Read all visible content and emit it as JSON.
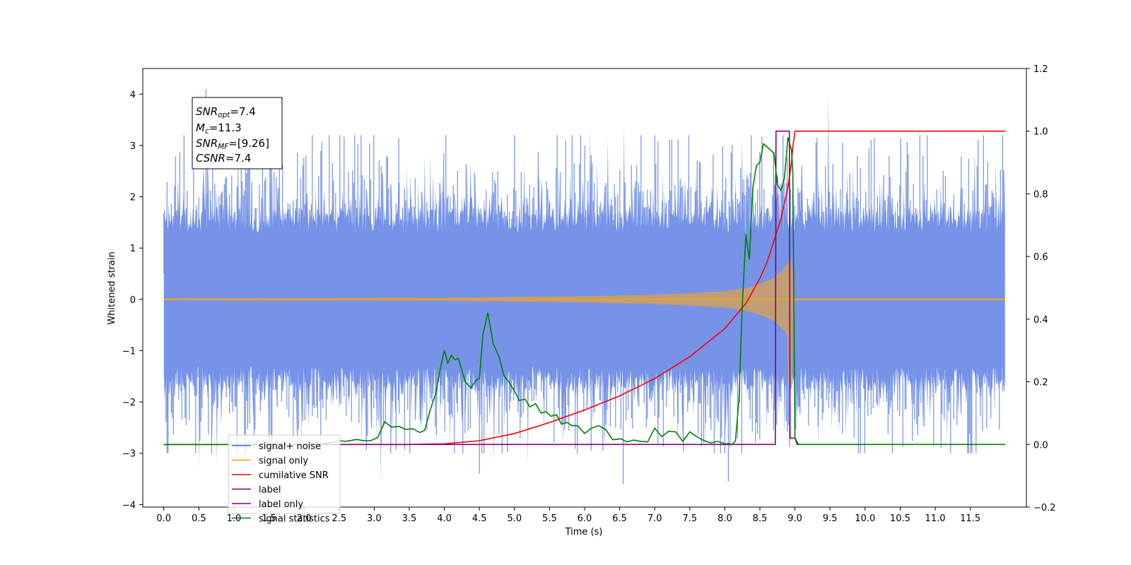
{
  "chart_data": {
    "type": "line",
    "xlabel": "Time (s)",
    "ylabel": "Whitened strain",
    "xlim": [
      -0.3,
      12.3
    ],
    "ylim": [
      -4.05,
      4.5
    ],
    "y2lim": [
      -0.2,
      1.2
    ],
    "xticks": [
      "0.0",
      "0.5",
      "1.0",
      "1.5",
      "2.0",
      "2.5",
      "3.0",
      "3.5",
      "4.0",
      "4.5",
      "5.0",
      "5.5",
      "6.0",
      "6.5",
      "7.0",
      "7.5",
      "8.0",
      "8.5",
      "9.0",
      "9.5",
      "10.0",
      "10.5",
      "11.0",
      "11.5"
    ],
    "yticks": [
      "4",
      "3",
      "2",
      "1",
      "0",
      "−1",
      "−2",
      "−3",
      "−4"
    ],
    "y2ticks": [
      "1.2",
      "1.0",
      "0.8",
      "0.6",
      "0.4",
      "0.2",
      "0.0",
      "−0.2"
    ],
    "annotation": {
      "snr_opt_base": "SNR",
      "snr_opt_sub": "opt",
      "snr_opt_value": "=7.4",
      "mc_base": "M",
      "mc_sub": "c",
      "mc_value": "=11.3",
      "snr_mf_base": "SNR",
      "snr_mf_sub": "MF",
      "snr_mf_value": "=[9.26]",
      "csnr_base": "CSNR",
      "csnr_value": "=7.4"
    },
    "legend": [
      {
        "label": "signal+ noise",
        "color": "#4169e1"
      },
      {
        "label": "signal only",
        "color": "#ffa500"
      },
      {
        "label": "cumilative SNR",
        "color": "#ff0000"
      },
      {
        "label": "label",
        "color": "#800080"
      },
      {
        "label": "label only",
        "color": "#800080"
      },
      {
        "label": "signal statistics",
        "color": "#008000"
      }
    ],
    "legend_position": "lower-left",
    "series": [
      {
        "name": "signal+ noise",
        "axis": "left",
        "color": "#4169e1",
        "x_range": [
          0.0,
          12.0
        ],
        "amplitude_sigma": 1.0,
        "peak_max": 4.1,
        "peak_min": -3.6
      },
      {
        "name": "signal only",
        "axis": "left",
        "color": "#ffa500",
        "chirp_start": 0.0,
        "merger_time": 8.97,
        "envelope_x": [
          0.0,
          4.0,
          6.0,
          7.0,
          7.5,
          8.0,
          8.3,
          8.5,
          8.7,
          8.85,
          8.95,
          9.0,
          12.0
        ],
        "envelope_y": [
          0.02,
          0.03,
          0.06,
          0.09,
          0.12,
          0.16,
          0.22,
          0.3,
          0.42,
          0.62,
          0.8,
          0.02,
          0.02
        ]
      },
      {
        "name": "cumilative SNR",
        "axis": "right",
        "color": "#ff0000",
        "x": [
          0.0,
          3.5,
          4.0,
          4.5,
          5.0,
          5.5,
          6.0,
          6.5,
          7.0,
          7.5,
          8.0,
          8.3,
          8.5,
          8.6,
          8.7,
          8.8,
          8.9,
          8.95,
          8.97,
          9.0,
          12.0
        ],
        "y": [
          0.0,
          0.0,
          0.002,
          0.012,
          0.035,
          0.07,
          0.11,
          0.155,
          0.21,
          0.28,
          0.37,
          0.45,
          0.53,
          0.58,
          0.65,
          0.72,
          0.82,
          0.9,
          0.95,
          1.0,
          1.0
        ]
      },
      {
        "name": "label",
        "axis": "right",
        "color": "#800080",
        "x": [
          0.0,
          8.72,
          8.73,
          8.92,
          8.93,
          9.0,
          9.05
        ],
        "y": [
          0.0,
          0.0,
          1.0,
          1.0,
          0.02,
          0.02,
          0.0
        ]
      },
      {
        "name": "signal statistics",
        "axis": "right",
        "color": "#008000",
        "x": [
          0.0,
          2.2,
          2.35,
          2.5,
          2.6,
          2.75,
          2.85,
          2.95,
          3.05,
          3.15,
          3.25,
          3.35,
          3.45,
          3.55,
          3.65,
          3.72,
          3.8,
          3.88,
          3.95,
          4.0,
          4.05,
          4.1,
          4.15,
          4.2,
          4.3,
          4.38,
          4.45,
          4.5,
          4.55,
          4.62,
          4.7,
          4.78,
          4.85,
          4.92,
          5.0,
          5.07,
          5.15,
          5.22,
          5.3,
          5.38,
          5.45,
          5.52,
          5.6,
          5.67,
          5.75,
          5.82,
          5.9,
          6.0,
          6.1,
          6.2,
          6.3,
          6.4,
          6.52,
          6.6,
          6.7,
          6.8,
          6.9,
          7.0,
          7.1,
          7.2,
          7.3,
          7.4,
          7.5,
          7.58,
          7.65,
          7.73,
          7.8,
          7.9,
          8.0,
          8.05,
          8.1,
          8.15,
          8.2,
          8.25,
          8.3,
          8.35,
          8.4,
          8.45,
          8.5,
          8.55,
          8.6,
          8.65,
          8.7,
          8.75,
          8.8,
          8.85,
          8.9,
          8.95,
          8.97,
          9.0,
          9.03,
          12.0
        ],
        "y": [
          0.0,
          0.0,
          0.005,
          0.012,
          0.01,
          0.016,
          0.012,
          0.012,
          0.022,
          0.072,
          0.055,
          0.058,
          0.048,
          0.05,
          0.038,
          0.045,
          0.11,
          0.165,
          0.25,
          0.3,
          0.26,
          0.285,
          0.27,
          0.275,
          0.2,
          0.18,
          0.205,
          0.21,
          0.35,
          0.42,
          0.32,
          0.28,
          0.22,
          0.2,
          0.17,
          0.14,
          0.145,
          0.12,
          0.13,
          0.1,
          0.105,
          0.09,
          0.095,
          0.065,
          0.07,
          0.06,
          0.06,
          0.035,
          0.052,
          0.06,
          0.048,
          0.015,
          0.018,
          0.008,
          0.014,
          0.01,
          0.008,
          0.052,
          0.025,
          0.042,
          0.04,
          0.01,
          0.04,
          0.028,
          0.018,
          0.01,
          0.005,
          0.01,
          0.002,
          0.003,
          0.0,
          0.01,
          0.14,
          0.45,
          0.67,
          0.59,
          0.82,
          0.89,
          0.9,
          0.96,
          0.95,
          0.94,
          0.93,
          0.83,
          0.81,
          0.85,
          0.98,
          0.94,
          0.87,
          0.02,
          0.0,
          0.0
        ]
      }
    ]
  }
}
